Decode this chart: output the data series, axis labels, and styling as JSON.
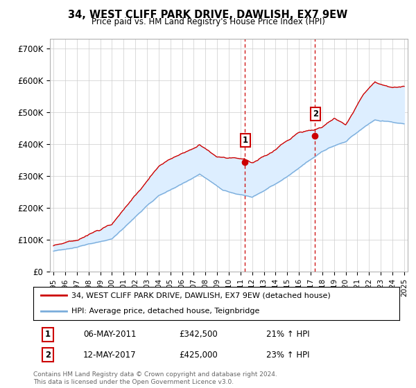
{
  "title": "34, WEST CLIFF PARK DRIVE, DAWLISH, EX7 9EW",
  "subtitle": "Price paid vs. HM Land Registry's House Price Index (HPI)",
  "ylabel_ticks": [
    "£0",
    "£100K",
    "£200K",
    "£300K",
    "£400K",
    "£500K",
    "£600K",
    "£700K"
  ],
  "ytick_vals": [
    0,
    100000,
    200000,
    300000,
    400000,
    500000,
    600000,
    700000
  ],
  "ylim": [
    0,
    730000
  ],
  "xlim_start": 1994.7,
  "xlim_end": 2025.3,
  "sale1_x": 2011.35,
  "sale1_y": 342500,
  "sale1_label": "1",
  "sale1_date": "06-MAY-2011",
  "sale1_price": "£342,500",
  "sale1_hpi": "21% ↑ HPI",
  "sale2_x": 2017.36,
  "sale2_y": 425000,
  "sale2_label": "2",
  "sale2_date": "12-MAY-2017",
  "sale2_price": "£425,000",
  "sale2_hpi": "23% ↑ HPI",
  "legend_house": "34, WEST CLIFF PARK DRIVE, DAWLISH, EX7 9EW (detached house)",
  "legend_hpi": "HPI: Average price, detached house, Teignbridge",
  "footnote": "Contains HM Land Registry data © Crown copyright and database right 2024.\nThis data is licensed under the Open Government Licence v3.0.",
  "line_color_house": "#cc0000",
  "line_color_hpi": "#7aaddb",
  "shade_color": "#ddeeff",
  "vline_color": "#cc0000",
  "background_color": "#ffffff",
  "grid_color": "#cccccc",
  "fig_width": 6.0,
  "fig_height": 5.6,
  "dpi": 100
}
